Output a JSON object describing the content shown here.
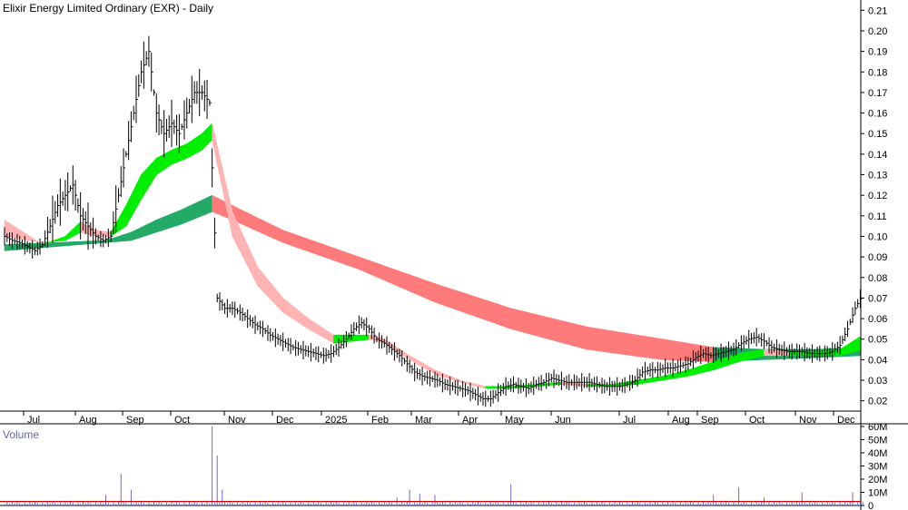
{
  "title": "Elixir Energy Limited Ordinary (EXR) - Daily",
  "volume_label": "Volume",
  "colors": {
    "price": "#000000",
    "short_up": "#00ee00",
    "long_up": "#22aa66",
    "down_light": "#ffb3b3",
    "down_dark": "#ff7a7a",
    "orange": "#ff6600",
    "volume": "#6b6bcf",
    "volume_avg": "#cc0000",
    "grid": "#dddddd"
  },
  "chart_data": [
    {
      "type": "line",
      "subtype": "price-with-guppy-bands",
      "title": "Elixir Energy Limited Ordinary (EXR) - Daily",
      "x_ticks": [
        "Jul",
        "Aug",
        "Sep",
        "Oct",
        "Nov",
        "Dec",
        "2025",
        "Feb",
        "Mar",
        "Apr",
        "May",
        "Jun",
        "Jul",
        "Aug",
        "Sep",
        "Oct",
        "Nov",
        "Dec"
      ],
      "y_ticks": [
        "0.02",
        "0.03",
        "0.04",
        "0.05",
        "0.06",
        "0.07",
        "0.08",
        "0.09",
        "0.10",
        "0.11",
        "0.12",
        "0.13",
        "0.14",
        "0.15",
        "0.16",
        "0.17",
        "0.18",
        "0.19",
        "0.20",
        "0.21"
      ],
      "ylim": [
        0.015,
        0.215
      ],
      "price": [
        [
          0,
          0.1
        ],
        [
          3,
          0.098
        ],
        [
          6,
          0.097
        ],
        [
          9,
          0.095
        ],
        [
          12,
          0.093
        ],
        [
          15,
          0.096
        ],
        [
          18,
          0.105
        ],
        [
          21,
          0.115
        ],
        [
          24,
          0.12
        ],
        [
          27,
          0.125
        ],
        [
          30,
          0.11
        ],
        [
          33,
          0.105
        ],
        [
          36,
          0.1
        ],
        [
          39,
          0.098
        ],
        [
          42,
          0.1
        ],
        [
          45,
          0.12
        ],
        [
          48,
          0.14
        ],
        [
          51,
          0.16
        ],
        [
          54,
          0.18
        ],
        [
          57,
          0.19
        ],
        [
          60,
          0.16
        ],
        [
          63,
          0.15
        ],
        [
          66,
          0.155
        ],
        [
          69,
          0.15
        ],
        [
          72,
          0.16
        ],
        [
          75,
          0.17
        ],
        [
          78,
          0.17
        ],
        [
          81,
          0.165
        ],
        [
          84,
          0.07
        ],
        [
          87,
          0.065
        ],
        [
          90,
          0.065
        ],
        [
          93,
          0.063
        ],
        [
          96,
          0.06
        ],
        [
          99,
          0.057
        ],
        [
          102,
          0.055
        ],
        [
          105,
          0.052
        ],
        [
          108,
          0.05
        ],
        [
          111,
          0.048
        ],
        [
          114,
          0.046
        ],
        [
          117,
          0.045
        ],
        [
          120,
          0.044
        ],
        [
          123,
          0.043
        ],
        [
          126,
          0.042
        ],
        [
          129,
          0.043
        ],
        [
          132,
          0.046
        ],
        [
          135,
          0.05
        ],
        [
          138,
          0.055
        ],
        [
          141,
          0.058
        ],
        [
          144,
          0.055
        ],
        [
          147,
          0.05
        ],
        [
          150,
          0.048
        ],
        [
          153,
          0.045
        ],
        [
          156,
          0.042
        ],
        [
          159,
          0.038
        ],
        [
          162,
          0.034
        ],
        [
          165,
          0.032
        ],
        [
          168,
          0.031
        ],
        [
          171,
          0.03
        ],
        [
          174,
          0.028
        ],
        [
          177,
          0.027
        ],
        [
          180,
          0.026
        ],
        [
          183,
          0.025
        ],
        [
          186,
          0.023
        ],
        [
          189,
          0.021
        ],
        [
          192,
          0.021
        ],
        [
          195,
          0.024
        ],
        [
          198,
          0.027
        ],
        [
          201,
          0.028
        ],
        [
          204,
          0.027
        ],
        [
          207,
          0.026
        ],
        [
          210,
          0.028
        ],
        [
          213,
          0.029
        ],
        [
          216,
          0.031
        ],
        [
          219,
          0.03
        ],
        [
          222,
          0.029
        ],
        [
          225,
          0.029
        ],
        [
          228,
          0.029
        ],
        [
          231,
          0.029
        ],
        [
          234,
          0.028
        ],
        [
          237,
          0.027
        ],
        [
          240,
          0.027
        ],
        [
          243,
          0.027
        ],
        [
          246,
          0.028
        ],
        [
          249,
          0.03
        ],
        [
          252,
          0.034
        ],
        [
          255,
          0.035
        ],
        [
          258,
          0.035
        ],
        [
          261,
          0.036
        ],
        [
          264,
          0.036
        ],
        [
          267,
          0.037
        ],
        [
          270,
          0.038
        ],
        [
          273,
          0.041
        ],
        [
          276,
          0.043
        ],
        [
          279,
          0.042
        ],
        [
          282,
          0.043
        ],
        [
          285,
          0.044
        ],
        [
          288,
          0.045
        ],
        [
          291,
          0.048
        ],
        [
          294,
          0.05
        ],
        [
          297,
          0.051
        ],
        [
          300,
          0.049
        ],
        [
          303,
          0.046
        ],
        [
          306,
          0.045
        ],
        [
          309,
          0.044
        ],
        [
          312,
          0.044
        ],
        [
          315,
          0.044
        ],
        [
          318,
          0.043
        ],
        [
          321,
          0.043
        ],
        [
          324,
          0.043
        ],
        [
          327,
          0.044
        ],
        [
          330,
          0.047
        ],
        [
          333,
          0.055
        ],
        [
          336,
          0.065
        ],
        [
          339,
          0.072
        ]
      ],
      "short_band_upper": [
        [
          0,
          0.108
        ],
        [
          15,
          0.096
        ],
        [
          24,
          0.1
        ],
        [
          30,
          0.107
        ],
        [
          36,
          0.103
        ],
        [
          42,
          0.102
        ],
        [
          48,
          0.115
        ],
        [
          54,
          0.13
        ],
        [
          60,
          0.138
        ],
        [
          66,
          0.142
        ],
        [
          72,
          0.145
        ],
        [
          78,
          0.15
        ],
        [
          82,
          0.155
        ],
        [
          90,
          0.112
        ],
        [
          100,
          0.085
        ],
        [
          110,
          0.07
        ],
        [
          120,
          0.06
        ],
        [
          130,
          0.052
        ],
        [
          138,
          0.052
        ],
        [
          145,
          0.052
        ],
        [
          150,
          0.05
        ],
        [
          160,
          0.042
        ],
        [
          170,
          0.035
        ],
        [
          180,
          0.03
        ],
        [
          190,
          0.027
        ],
        [
          200,
          0.027
        ],
        [
          210,
          0.028
        ],
        [
          220,
          0.029
        ],
        [
          230,
          0.028
        ],
        [
          240,
          0.028
        ],
        [
          250,
          0.03
        ],
        [
          260,
          0.032
        ],
        [
          270,
          0.035
        ],
        [
          280,
          0.039
        ],
        [
          290,
          0.043
        ],
        [
          300,
          0.045
        ],
        [
          310,
          0.044
        ],
        [
          320,
          0.044
        ],
        [
          330,
          0.045
        ],
        [
          339,
          0.052
        ]
      ],
      "short_band_lower": [
        [
          0,
          0.1
        ],
        [
          15,
          0.097
        ],
        [
          24,
          0.098
        ],
        [
          30,
          0.102
        ],
        [
          36,
          0.1
        ],
        [
          42,
          0.1
        ],
        [
          48,
          0.105
        ],
        [
          54,
          0.118
        ],
        [
          60,
          0.13
        ],
        [
          66,
          0.135
        ],
        [
          72,
          0.138
        ],
        [
          78,
          0.142
        ],
        [
          82,
          0.147
        ],
        [
          90,
          0.1
        ],
        [
          100,
          0.076
        ],
        [
          110,
          0.063
        ],
        [
          120,
          0.055
        ],
        [
          130,
          0.048
        ],
        [
          138,
          0.049
        ],
        [
          145,
          0.05
        ],
        [
          150,
          0.048
        ],
        [
          160,
          0.04
        ],
        [
          170,
          0.033
        ],
        [
          180,
          0.029
        ],
        [
          190,
          0.026
        ],
        [
          200,
          0.026
        ],
        [
          210,
          0.027
        ],
        [
          220,
          0.028
        ],
        [
          230,
          0.027
        ],
        [
          240,
          0.027
        ],
        [
          250,
          0.028
        ],
        [
          260,
          0.03
        ],
        [
          270,
          0.032
        ],
        [
          280,
          0.035
        ],
        [
          290,
          0.039
        ],
        [
          300,
          0.042
        ],
        [
          310,
          0.042
        ],
        [
          320,
          0.042
        ],
        [
          330,
          0.042
        ],
        [
          339,
          0.045
        ]
      ],
      "long_band_upper": [
        [
          0,
          0.096
        ],
        [
          20,
          0.097
        ],
        [
          40,
          0.098
        ],
        [
          50,
          0.102
        ],
        [
          60,
          0.108
        ],
        [
          70,
          0.113
        ],
        [
          82,
          0.12
        ],
        [
          90,
          0.115
        ],
        [
          110,
          0.103
        ],
        [
          140,
          0.09
        ],
        [
          170,
          0.077
        ],
        [
          200,
          0.065
        ],
        [
          230,
          0.056
        ],
        [
          260,
          0.05
        ],
        [
          280,
          0.046
        ],
        [
          300,
          0.045
        ],
        [
          320,
          0.045
        ],
        [
          339,
          0.046
        ]
      ],
      "long_band_lower": [
        [
          0,
          0.093
        ],
        [
          20,
          0.095
        ],
        [
          40,
          0.097
        ],
        [
          50,
          0.098
        ],
        [
          60,
          0.102
        ],
        [
          70,
          0.106
        ],
        [
          82,
          0.112
        ],
        [
          90,
          0.108
        ],
        [
          110,
          0.097
        ],
        [
          140,
          0.084
        ],
        [
          170,
          0.068
        ],
        [
          200,
          0.055
        ],
        [
          230,
          0.045
        ],
        [
          260,
          0.04
        ],
        [
          280,
          0.039
        ],
        [
          300,
          0.04
        ],
        [
          320,
          0.041
        ],
        [
          339,
          0.042
        ]
      ]
    },
    {
      "type": "bar",
      "subtype": "volume",
      "y_ticks": [
        "0",
        "10M",
        "20M",
        "30M",
        "40M",
        "50M",
        "60M"
      ],
      "ylim": [
        0,
        60
      ],
      "spikes": [
        [
          40,
          8
        ],
        [
          46,
          24
        ],
        [
          50,
          12
        ],
        [
          82,
          60
        ],
        [
          84,
          38
        ],
        [
          86,
          12
        ],
        [
          155,
          6
        ],
        [
          160,
          12
        ],
        [
          164,
          9
        ],
        [
          170,
          8
        ],
        [
          200,
          16
        ],
        [
          280,
          8
        ],
        [
          290,
          14
        ],
        [
          300,
          6
        ],
        [
          315,
          10
        ],
        [
          335,
          10
        ],
        [
          338,
          8
        ]
      ],
      "average": 3
    }
  ]
}
